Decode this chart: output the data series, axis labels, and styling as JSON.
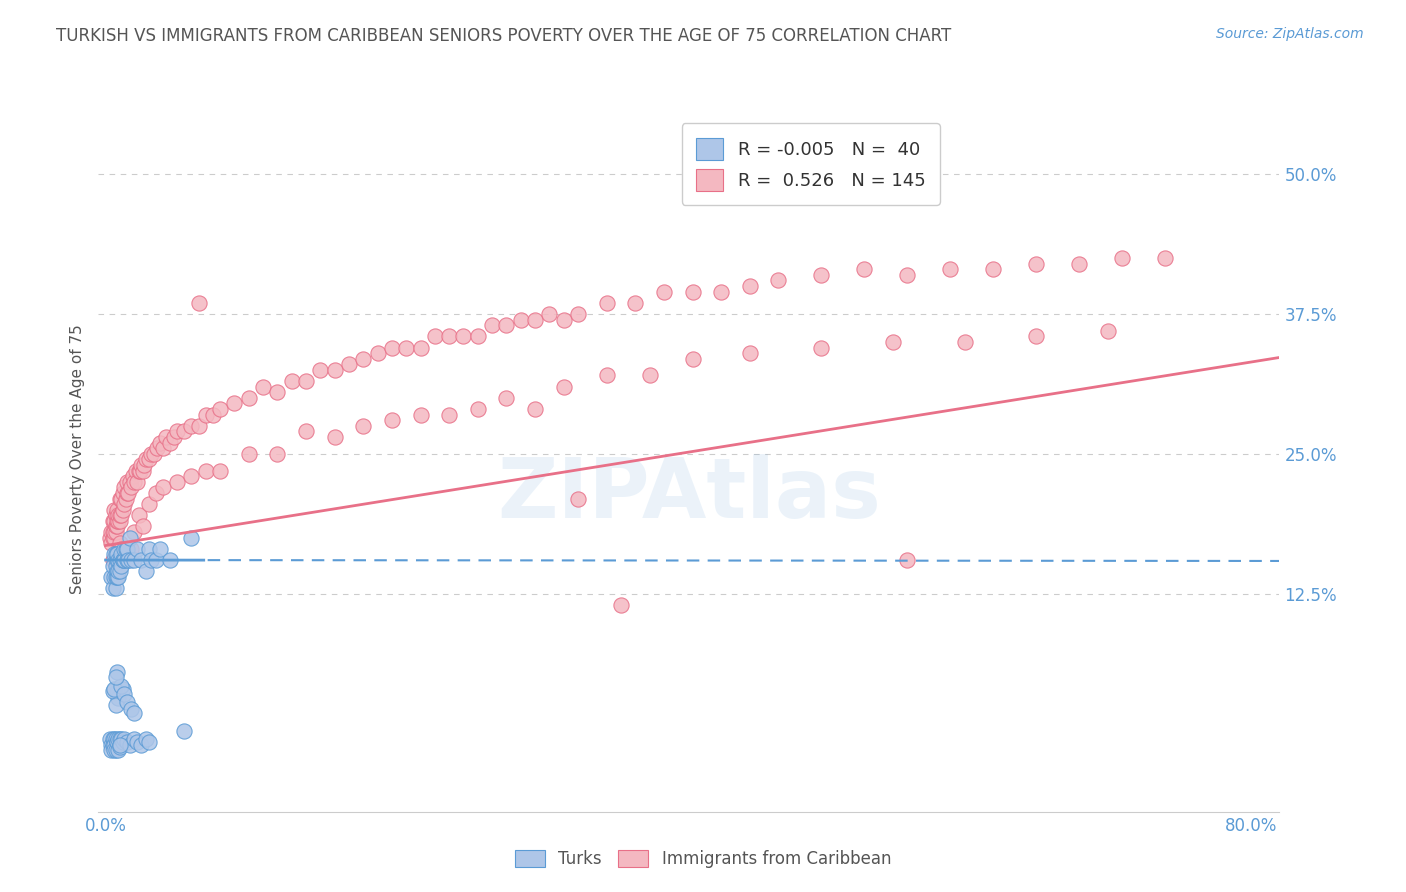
{
  "title": "TURKISH VS IMMIGRANTS FROM CARIBBEAN SENIORS POVERTY OVER THE AGE OF 75 CORRELATION CHART",
  "source": "Source: ZipAtlas.com",
  "ylabel": "Seniors Poverty Over the Age of 75",
  "xlim": [
    -0.005,
    0.82
  ],
  "ylim": [
    -0.07,
    0.56
  ],
  "xticks": [
    0.0,
    0.4,
    0.8
  ],
  "xticklabels": [
    "0.0%",
    "",
    "80.0%"
  ],
  "yticks": [
    0.125,
    0.25,
    0.375,
    0.5
  ],
  "yticklabels": [
    "12.5%",
    "25.0%",
    "37.5%",
    "50.0%"
  ],
  "grid_color": "#cccccc",
  "background_color": "#ffffff",
  "title_color": "#555555",
  "title_fontsize": 12,
  "axis_label_color": "#555555",
  "tick_label_color": "#5b9bd5",
  "legend_R1": "-0.005",
  "legend_N1": "40",
  "legend_R2": "0.526",
  "legend_N2": "145",
  "turks_color": "#aec6e8",
  "turks_edge_color": "#5b9bd5",
  "carib_color": "#f4b8c1",
  "carib_edge_color": "#e87088",
  "trend_turks_color": "#5b9bd5",
  "trend_carib_color": "#e87088",
  "turks_trend_intercept": 0.155,
  "turks_trend_slope": -0.001,
  "carib_trend_intercept": 0.168,
  "carib_trend_slope": 0.205,
  "turks_x": [
    0.004,
    0.005,
    0.005,
    0.006,
    0.006,
    0.007,
    0.007,
    0.007,
    0.007,
    0.008,
    0.008,
    0.008,
    0.008,
    0.009,
    0.009,
    0.009,
    0.01,
    0.01,
    0.011,
    0.011,
    0.012,
    0.012,
    0.013,
    0.013,
    0.014,
    0.015,
    0.015,
    0.016,
    0.017,
    0.018,
    0.02,
    0.022,
    0.025,
    0.028,
    0.03,
    0.032,
    0.035,
    0.038,
    0.045,
    0.06
  ],
  "turks_y": [
    0.14,
    0.13,
    0.15,
    0.14,
    0.16,
    0.13,
    0.15,
    0.14,
    0.16,
    0.155,
    0.145,
    0.14,
    0.16,
    0.14,
    0.155,
    0.145,
    0.155,
    0.145,
    0.16,
    0.15,
    0.155,
    0.155,
    0.155,
    0.165,
    0.165,
    0.155,
    0.165,
    0.155,
    0.175,
    0.155,
    0.155,
    0.165,
    0.155,
    0.145,
    0.165,
    0.155,
    0.155,
    0.165,
    0.155,
    0.175
  ],
  "turks_x_below": [
    0.003,
    0.004,
    0.004,
    0.005,
    0.005,
    0.006,
    0.006,
    0.006,
    0.007,
    0.007,
    0.008,
    0.009,
    0.009,
    0.01,
    0.01,
    0.011,
    0.012,
    0.013,
    0.015,
    0.017,
    0.02,
    0.022,
    0.025,
    0.028,
    0.03,
    0.055,
    0.01,
    0.008,
    0.009,
    0.012,
    0.005,
    0.006,
    0.007,
    0.011,
    0.013,
    0.015,
    0.018,
    0.02,
    0.008,
    0.007
  ],
  "turks_y_below": [
    -0.005,
    -0.01,
    -0.015,
    -0.005,
    -0.01,
    -0.005,
    -0.01,
    -0.015,
    -0.005,
    -0.015,
    -0.008,
    -0.005,
    -0.015,
    -0.005,
    -0.012,
    -0.005,
    -0.008,
    -0.005,
    -0.008,
    -0.01,
    -0.005,
    -0.008,
    -0.01,
    -0.005,
    -0.008,
    0.002,
    -0.01,
    0.038,
    0.032,
    0.04,
    0.038,
    0.04,
    0.025,
    0.042,
    0.035,
    0.028,
    0.022,
    0.018,
    0.055,
    0.05
  ],
  "carib_x": [
    0.003,
    0.004,
    0.004,
    0.005,
    0.005,
    0.005,
    0.006,
    0.006,
    0.006,
    0.006,
    0.007,
    0.007,
    0.007,
    0.008,
    0.008,
    0.008,
    0.009,
    0.009,
    0.01,
    0.01,
    0.01,
    0.011,
    0.011,
    0.012,
    0.012,
    0.013,
    0.013,
    0.014,
    0.015,
    0.015,
    0.016,
    0.017,
    0.018,
    0.019,
    0.02,
    0.021,
    0.022,
    0.023,
    0.024,
    0.025,
    0.026,
    0.027,
    0.028,
    0.03,
    0.032,
    0.034,
    0.036,
    0.038,
    0.04,
    0.042,
    0.045,
    0.048,
    0.05,
    0.055,
    0.06,
    0.065,
    0.07,
    0.075,
    0.08,
    0.09,
    0.1,
    0.11,
    0.12,
    0.13,
    0.14,
    0.15,
    0.16,
    0.17,
    0.18,
    0.19,
    0.2,
    0.21,
    0.22,
    0.23,
    0.24,
    0.25,
    0.26,
    0.27,
    0.28,
    0.29,
    0.3,
    0.31,
    0.32,
    0.33,
    0.35,
    0.37,
    0.39,
    0.41,
    0.43,
    0.45,
    0.47,
    0.5,
    0.53,
    0.56,
    0.59,
    0.62,
    0.65,
    0.68,
    0.71,
    0.74,
    0.005,
    0.007,
    0.008,
    0.009,
    0.01,
    0.011,
    0.012,
    0.014,
    0.016,
    0.018,
    0.02,
    0.023,
    0.026,
    0.03,
    0.035,
    0.04,
    0.05,
    0.06,
    0.07,
    0.08,
    0.1,
    0.12,
    0.14,
    0.16,
    0.18,
    0.2,
    0.22,
    0.24,
    0.26,
    0.28,
    0.3,
    0.32,
    0.35,
    0.38,
    0.41,
    0.45,
    0.5,
    0.55,
    0.6,
    0.65,
    0.7,
    0.33,
    0.36,
    0.56,
    0.065
  ],
  "carib_y": [
    0.175,
    0.17,
    0.18,
    0.175,
    0.18,
    0.19,
    0.175,
    0.18,
    0.19,
    0.2,
    0.18,
    0.185,
    0.195,
    0.185,
    0.19,
    0.2,
    0.19,
    0.195,
    0.19,
    0.195,
    0.21,
    0.195,
    0.21,
    0.2,
    0.215,
    0.205,
    0.22,
    0.21,
    0.215,
    0.225,
    0.215,
    0.225,
    0.22,
    0.23,
    0.225,
    0.235,
    0.225,
    0.235,
    0.235,
    0.24,
    0.235,
    0.24,
    0.245,
    0.245,
    0.25,
    0.25,
    0.255,
    0.26,
    0.255,
    0.265,
    0.26,
    0.265,
    0.27,
    0.27,
    0.275,
    0.275,
    0.285,
    0.285,
    0.29,
    0.295,
    0.3,
    0.31,
    0.305,
    0.315,
    0.315,
    0.325,
    0.325,
    0.33,
    0.335,
    0.34,
    0.345,
    0.345,
    0.345,
    0.355,
    0.355,
    0.355,
    0.355,
    0.365,
    0.365,
    0.37,
    0.37,
    0.375,
    0.37,
    0.375,
    0.385,
    0.385,
    0.395,
    0.395,
    0.395,
    0.4,
    0.405,
    0.41,
    0.415,
    0.41,
    0.415,
    0.415,
    0.42,
    0.42,
    0.425,
    0.425,
    0.155,
    0.155,
    0.155,
    0.155,
    0.17,
    0.165,
    0.16,
    0.165,
    0.16,
    0.165,
    0.18,
    0.195,
    0.185,
    0.205,
    0.215,
    0.22,
    0.225,
    0.23,
    0.235,
    0.235,
    0.25,
    0.25,
    0.27,
    0.265,
    0.275,
    0.28,
    0.285,
    0.285,
    0.29,
    0.3,
    0.29,
    0.31,
    0.32,
    0.32,
    0.335,
    0.34,
    0.345,
    0.35,
    0.35,
    0.355,
    0.36,
    0.21,
    0.115,
    0.155,
    0.385
  ]
}
